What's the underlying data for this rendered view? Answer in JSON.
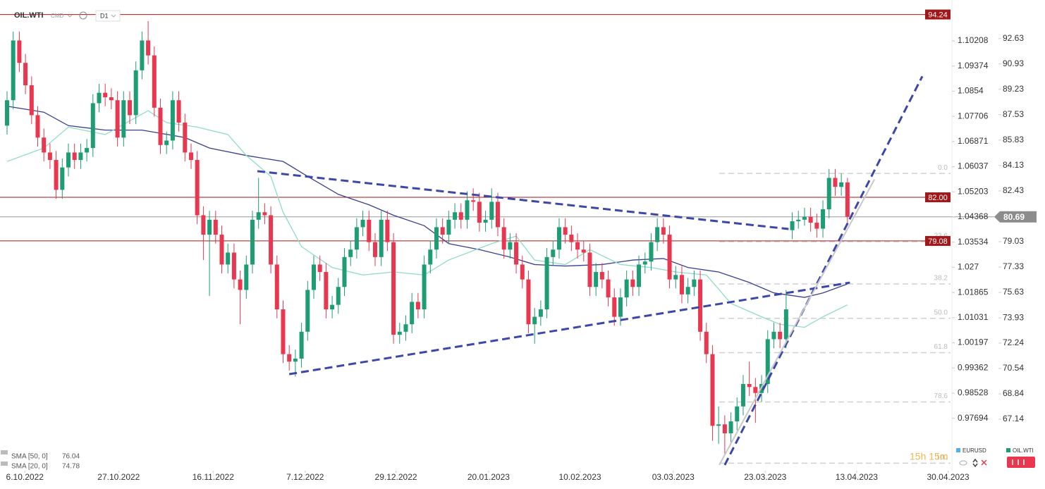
{
  "chart_data": {
    "type": "candlestick",
    "symbol": "OIL.WTI",
    "market": "CMD",
    "interval": "D1",
    "xlim": [
      -1.15,
      153.8
    ],
    "ylim": [
      63.84,
      95.21
    ],
    "yticks": [
      92.63,
      90.93,
      89.23,
      87.53,
      85.83,
      84.13,
      82.43,
      79.03,
      77.33,
      75.63,
      73.93,
      72.24,
      70.54,
      68.84,
      67.14
    ],
    "y2lim": [
      0.96028,
      1.11563
    ],
    "y2ticks": [
      1.10208,
      1.09374,
      1.0854,
      1.07706,
      1.06871,
      1.06037,
      1.05203,
      1.04368,
      1.03534,
      1.027,
      1.01865,
      1.01031,
      1.00197,
      0.99362,
      0.98528,
      0.97694
    ],
    "xticks": [
      {
        "value": 2.9,
        "label": "6.10.2022"
      },
      {
        "value": 18.2,
        "label": "27.10.2022"
      },
      {
        "value": 33.6,
        "label": "16.11.2022"
      },
      {
        "value": 48.6,
        "label": "7.12.2022"
      },
      {
        "value": 63.4,
        "label": "29.12.2022"
      },
      {
        "value": 78.5,
        "label": "20.01.2023"
      },
      {
        "value": 93.4,
        "label": "10.02.2023"
      },
      {
        "value": 108.6,
        "label": "03.03.2023"
      },
      {
        "value": 123.6,
        "label": "23.03.2023"
      },
      {
        "value": 138.5,
        "label": "13.04.2023"
      },
      {
        "value": 153.4,
        "label": "30.04.2023"
      }
    ],
    "up_color": "#1e9c73",
    "down_color": "#e8374e",
    "open": [
      86.8,
      88.5,
      92.5,
      91,
      89.5,
      87.5,
      86,
      85,
      84.5,
      82.5,
      84,
      85,
      84.5,
      85,
      85.3,
      88.3,
      89,
      88.7,
      88.5,
      86,
      88.5,
      87.5,
      90.5,
      92.5,
      91.5,
      88,
      85.5,
      85.8,
      88.5,
      87,
      85,
      84.5,
      80.8,
      79.5,
      80.5,
      79.5,
      77.5,
      78.3,
      76.5,
      75.8,
      77.5,
      80.5,
      81,
      80.8,
      77.5,
      74.5,
      71.5,
      71,
      71.2,
      73,
      75.8,
      77.5,
      77,
      74.5,
      74.8,
      76,
      78,
      78.5,
      80,
      80.5,
      79,
      78,
      80.5,
      79,
      72.8,
      73,
      73.5,
      75,
      74.5,
      77.5,
      78.5,
      80,
      79.5,
      80.5,
      81,
      80.5,
      81.8,
      81.7,
      80.3,
      80.5,
      81.7,
      80,
      78.5,
      79,
      77.5,
      76.5,
      73.5,
      74,
      74.5,
      78,
      78.5,
      80,
      79.5,
      79,
      78.5,
      78.3,
      76,
      77,
      76.5,
      75.3,
      74,
      75.3,
      76.5,
      76,
      77.5,
      77.7,
      79,
      80,
      79.5,
      76.5,
      76.8,
      75.5,
      76,
      76.5,
      73,
      71.5,
      66.7,
      66.8,
      66.2,
      67,
      68,
      69.5,
      69.3,
      68.9,
      69.5,
      72.5,
      73,
      72.5,
      79.8,
      80.4,
      80.5,
      80.7,
      80.3,
      79.9,
      81.2,
      83.3,
      82.7,
      83
    ],
    "high": [
      89.1,
      93.1,
      93.1,
      91.6,
      90.1,
      88.1,
      86.6,
      85.6,
      85.1,
      84.6,
      85.6,
      85.6,
      85.6,
      85.9,
      88.9,
      89.6,
      89.6,
      89.3,
      89.1,
      89.1,
      89.1,
      91.1,
      93.1,
      93.8,
      92.1,
      88.6,
      86.4,
      89.1,
      89.1,
      87.6,
      85.6,
      85.1,
      81.4,
      81.1,
      81.1,
      80.1,
      78.9,
      78.9,
      77.1,
      78.1,
      81.1,
      83.3,
      81.6,
      81.4,
      78.1,
      75.1,
      72.1,
      71.8,
      73.6,
      76.4,
      78.1,
      78.1,
      77.6,
      75.4,
      76.6,
      78.6,
      79.1,
      80.6,
      81.1,
      81.1,
      79.6,
      81.1,
      81.1,
      79.6,
      73.6,
      74.1,
      75.6,
      75.6,
      78.1,
      79.1,
      80.6,
      80.6,
      81.1,
      81.6,
      81.6,
      82.4,
      82.6,
      82.3,
      81.1,
      82.6,
      82.3,
      80.6,
      79.6,
      79.6,
      78.1,
      77.1,
      74.6,
      75.1,
      78.6,
      79.1,
      80.6,
      80.6,
      80.1,
      79.6,
      79.1,
      78.9,
      77.6,
      77.6,
      77.1,
      75.9,
      75.9,
      77.1,
      77.1,
      78.1,
      78.3,
      79.6,
      80.6,
      80.6,
      80.1,
      77.4,
      77.4,
      76.6,
      77.1,
      77.1,
      73.6,
      72.1,
      68,
      67.4,
      67.6,
      68.6,
      70.1,
      71,
      69.9,
      70.1,
      73.1,
      73.6,
      73.6,
      75.8,
      81,
      81.1,
      81.3,
      81.3,
      80.9,
      81.8,
      83.9,
      83.9,
      83.6,
      83.3
    ],
    "low": [
      86.2,
      87.9,
      90.4,
      88.9,
      86.9,
      85.4,
      84.4,
      83.9,
      81.9,
      81.9,
      83.4,
      83.9,
      83.9,
      84.4,
      84.7,
      87.7,
      88.1,
      87.9,
      85.4,
      85.4,
      86.9,
      86.9,
      89.9,
      90.9,
      87.4,
      84.9,
      84.9,
      85.2,
      86.4,
      84.4,
      83.9,
      80.2,
      77.8,
      75.4,
      78.9,
      76.9,
      76.9,
      75.9,
      73.5,
      75.2,
      76.9,
      79.9,
      80.2,
      76.9,
      73.9,
      70.9,
      70.4,
      70,
      70.6,
      72.4,
      75.2,
      76.4,
      73.9,
      73.9,
      74.2,
      75.4,
      77.4,
      77.9,
      79.4,
      78.4,
      77.4,
      77.4,
      78.4,
      72.2,
      72.2,
      72.4,
      72.9,
      73.9,
      73.9,
      76.9,
      77.9,
      78.9,
      78.9,
      79.9,
      79.9,
      79.9,
      81.1,
      79.7,
      79.7,
      79.9,
      79.4,
      77.9,
      77.9,
      76.9,
      75.9,
      72.9,
      72.2,
      73.4,
      73.9,
      77.4,
      77.9,
      78.9,
      78.4,
      77.9,
      77.7,
      75.4,
      75.4,
      75.9,
      74.7,
      73.4,
      73.4,
      74.7,
      75.4,
      75.4,
      76.9,
      77.1,
      78.4,
      78.9,
      75.9,
      75.9,
      74.9,
      74.9,
      75.4,
      72.4,
      70.9,
      65.7,
      65.5,
      64.8,
      65.6,
      66.4,
      67.4,
      68.7,
      66.9,
      68.3,
      68.9,
      71.9,
      71.9,
      71.9,
      79.2,
      79.9,
      80.1,
      79.7,
      79.3,
      79.3,
      80.6,
      82.1,
      82.1,
      80.1
    ],
    "close": [
      88.5,
      92.5,
      91,
      89.5,
      87.5,
      86,
      85,
      84.5,
      82.5,
      84,
      85,
      84.5,
      85,
      85.3,
      88.3,
      89,
      88.7,
      88.5,
      86,
      88.5,
      87.5,
      90.5,
      92.5,
      91.5,
      88,
      85.5,
      85.8,
      88.5,
      87,
      85,
      84.5,
      80.8,
      79.5,
      80.5,
      79.5,
      77.5,
      78.3,
      76.5,
      75.8,
      77.5,
      80.5,
      81,
      80.8,
      77.5,
      74.5,
      71.5,
      71,
      71.2,
      73,
      75.8,
      77.5,
      77,
      74.5,
      74.8,
      76,
      78,
      78.5,
      80,
      80.5,
      79,
      78,
      80.5,
      79,
      72.8,
      73,
      73.5,
      75,
      74.5,
      77.5,
      78.5,
      80,
      79.5,
      80.5,
      81,
      80.5,
      81.8,
      81.7,
      80.3,
      80.5,
      81.7,
      80,
      78.5,
      79,
      77.5,
      76.5,
      73.5,
      74,
      74.5,
      78,
      78.5,
      80,
      79.5,
      79,
      78.5,
      78.3,
      76,
      77,
      76.5,
      75.3,
      74,
      75.3,
      76.5,
      76,
      77.5,
      77.7,
      79,
      80,
      79.5,
      76.5,
      76.8,
      75.5,
      76,
      76.5,
      73,
      71.5,
      66.7,
      66.8,
      66.2,
      67,
      68,
      69.5,
      69.3,
      68.9,
      69.5,
      72.5,
      73,
      72.5,
      74.5,
      80.4,
      80.5,
      80.7,
      80.3,
      79.9,
      81.2,
      83.3,
      82.7,
      83,
      80.7
    ],
    "series": [
      {
        "name": "SMA [50, 0]",
        "legend_value": 76.04,
        "color": "#3a3f8f",
        "x": [
          0,
          6,
          10,
          16,
          22,
          29,
          33,
          39,
          45,
          49,
          54,
          59,
          63,
          68,
          72,
          77,
          82,
          86,
          91,
          97,
          102,
          107,
          111,
          116,
          121,
          125,
          130,
          133,
          137
        ],
        "values": [
          88.1,
          87.7,
          86.8,
          86.5,
          86.5,
          86,
          85.3,
          84.8,
          84.4,
          83.4,
          82.2,
          81.5,
          80.8,
          80.1,
          78.9,
          78.5,
          78,
          77.5,
          77.4,
          77.5,
          77.8,
          77.9,
          77.3,
          77,
          76.3,
          75.6,
          75.3,
          75.6,
          76.2
        ]
      },
      {
        "name": "SMA [20, 0]",
        "legend_value": 74.78,
        "color": "#8fdcc6",
        "x": [
          0,
          6,
          10,
          16,
          23,
          26,
          31,
          36,
          39,
          43,
          45,
          48,
          53,
          58,
          63,
          68,
          72,
          79,
          83,
          86,
          91,
          95,
          100,
          105,
          109,
          114,
          118,
          123,
          126,
          130,
          133,
          137
        ],
        "values": [
          84.4,
          85.3,
          86.7,
          86.2,
          87.8,
          87,
          86.7,
          86.2,
          84.8,
          83.4,
          81,
          78.7,
          77.3,
          76.8,
          77,
          76.8,
          77.8,
          78.9,
          79.4,
          77.8,
          77.5,
          78.5,
          77.5,
          77.3,
          77,
          76.8,
          74.9,
          74,
          73.5,
          73.3,
          74,
          74.8
        ]
      }
    ],
    "levels": [
      {
        "value": 94.24,
        "label": "94.24"
      },
      {
        "value": 82,
        "label": "82.00"
      },
      {
        "value": 79.08,
        "label": "79.08"
      }
    ],
    "level_color": "#a3171a",
    "last_price": 80.69,
    "fib_levels": [
      {
        "value": 83.6,
        "label": "0.0"
      },
      {
        "value": 79.03,
        "label": "23.6"
      },
      {
        "value": 76.2,
        "label": "38.2"
      },
      {
        "value": 73.9,
        "label": "50.0"
      },
      {
        "value": 71.6,
        "label": "61.8"
      },
      {
        "value": 68.3,
        "label": "78.6"
      },
      {
        "value": 64.2,
        "label": "100"
      }
    ],
    "trendlines": [
      {
        "color": "#3c47a8",
        "dashed": true,
        "points": [
          [
            40.8,
            83.75
          ],
          [
            127.4,
            79.88
          ]
        ]
      },
      {
        "color": "#3c47a8",
        "dashed": true,
        "points": [
          [
            46,
            70.16
          ],
          [
            137.4,
            76.29
          ]
        ]
      },
      {
        "color": "#3c47a8",
        "dashed": true,
        "points": [
          [
            117,
            64.08
          ],
          [
            149.2,
            90.1
          ]
        ]
      },
      {
        "color": "#c8c8cc",
        "dashed": false,
        "points": [
          [
            116.1,
            64.08
          ],
          [
            141.4,
            83.2
          ]
        ]
      }
    ],
    "footer": {
      "compare": "EURUSD",
      "main": "OIL.WTI",
      "countdown": "15h 15m"
    }
  }
}
